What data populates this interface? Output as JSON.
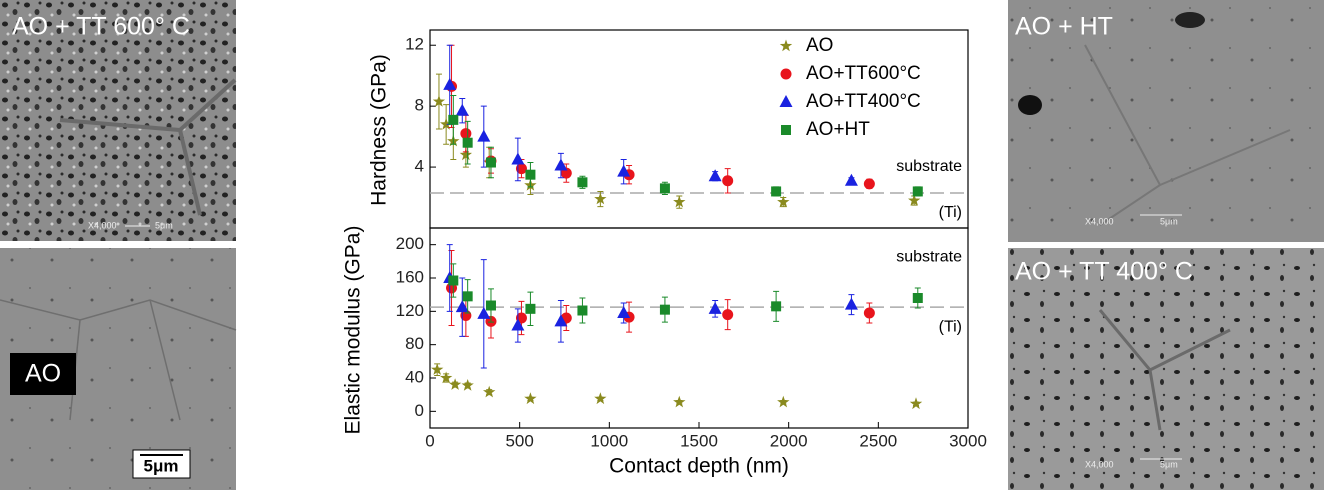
{
  "images": [
    {
      "label": "AO + TT 600° C",
      "scale_text": [
        "X4,000",
        "5μm"
      ]
    },
    {
      "label": "AO",
      "scale_text": [
        "5μm"
      ]
    },
    {
      "label": "AO + HT",
      "scale_text": [
        "X4,000",
        "5μm"
      ]
    },
    {
      "label": "AO + TT 400° C",
      "scale_text": [
        "X4,000",
        "5μm"
      ]
    }
  ],
  "chart_data": [
    {
      "type": "scatter",
      "ylabel": "Hardness (GPa)",
      "xlim": [
        0,
        3000
      ],
      "ylim": [
        0,
        13
      ],
      "yticks": [
        4,
        8,
        12
      ],
      "legend": "top-right",
      "ref_line": 2.3,
      "annotations": [
        "substrate",
        "(Ti)"
      ],
      "series": [
        {
          "name": "AO",
          "color": "#8a8a1e",
          "marker": "star",
          "x": [
            50,
            90,
            130,
            200,
            330,
            560,
            950,
            1390,
            1970,
            2700
          ],
          "values": [
            8.3,
            6.8,
            5.7,
            4.8,
            4.3,
            2.8,
            1.9,
            1.7,
            1.7,
            1.8
          ],
          "errors": [
            1.8,
            1.3,
            1.2,
            0.8,
            1.0,
            0.6,
            0.5,
            0.4,
            0.3,
            0.3
          ]
        },
        {
          "name": "AO+TT600°C",
          "color": "#e8141c",
          "marker": "circle",
          "x": [
            120,
            200,
            340,
            510,
            760,
            1110,
            1660,
            2450
          ],
          "values": [
            9.3,
            6.2,
            4.4,
            3.9,
            3.6,
            3.5,
            3.1,
            2.9
          ],
          "errors": [
            2.7,
            1.2,
            0.8,
            0.6,
            0.6,
            0.6,
            0.8,
            0.3
          ]
        },
        {
          "name": "AO+TT400°C",
          "color": "#1a22e0",
          "marker": "triangle",
          "x": [
            110,
            180,
            300,
            490,
            730,
            1080,
            1590,
            2350
          ],
          "values": [
            9.4,
            7.7,
            6.0,
            4.5,
            4.1,
            3.7,
            3.4,
            3.1
          ],
          "errors": [
            2.6,
            0.8,
            2.0,
            1.4,
            0.8,
            0.8,
            0.3,
            0.2
          ]
        },
        {
          "name": "AO+HT",
          "color": "#1a8a2a",
          "marker": "square",
          "x": [
            130,
            210,
            340,
            560,
            850,
            1310,
            1930,
            2720
          ],
          "values": [
            7.1,
            5.6,
            4.3,
            3.5,
            3.0,
            2.6,
            2.4,
            2.4
          ],
          "errors": [
            1.6,
            1.4,
            1.0,
            0.8,
            0.4,
            0.4,
            0.3,
            0.3
          ]
        }
      ]
    },
    {
      "type": "scatter",
      "ylabel": "Elastic modulus (GPa)",
      "xlabel": "Contact depth (nm)",
      "xlim": [
        0,
        3000
      ],
      "xticks": [
        0,
        500,
        1000,
        1500,
        2000,
        2500,
        3000
      ],
      "ylim": [
        -20,
        220
      ],
      "yticks": [
        0,
        40,
        80,
        120,
        160,
        200
      ],
      "ref_line": 125,
      "annotations": [
        "substrate",
        "(Ti)"
      ],
      "series": [
        {
          "color": "#8a8a1e",
          "marker": "star",
          "x": [
            40,
            90,
            140,
            210,
            330,
            560,
            950,
            1390,
            1970,
            2710
          ],
          "values": [
            50,
            40,
            32,
            31,
            23,
            15,
            15,
            11,
            11,
            9
          ],
          "errors": [
            7,
            5,
            3,
            3,
            3,
            2,
            2,
            2,
            2,
            2
          ]
        },
        {
          "color": "#e8141c",
          "marker": "circle",
          "x": [
            120,
            200,
            340,
            510,
            760,
            1110,
            1660,
            2450
          ],
          "values": [
            148,
            115,
            108,
            112,
            112,
            113,
            116,
            118
          ],
          "errors": [
            45,
            25,
            20,
            20,
            15,
            18,
            18,
            12
          ]
        },
        {
          "color": "#1a22e0",
          "marker": "triangle",
          "x": [
            110,
            180,
            300,
            490,
            730,
            1080,
            1590,
            2350
          ],
          "values": [
            160,
            125,
            117,
            103,
            108,
            118,
            123,
            128
          ],
          "errors": [
            40,
            35,
            65,
            20,
            25,
            12,
            10,
            12
          ]
        },
        {
          "color": "#1a8a2a",
          "marker": "square",
          "x": [
            130,
            210,
            340,
            560,
            850,
            1310,
            1930,
            2720
          ],
          "values": [
            157,
            138,
            127,
            123,
            121,
            122,
            126,
            136
          ],
          "errors": [
            20,
            20,
            20,
            20,
            15,
            15,
            18,
            12
          ]
        }
      ]
    }
  ]
}
